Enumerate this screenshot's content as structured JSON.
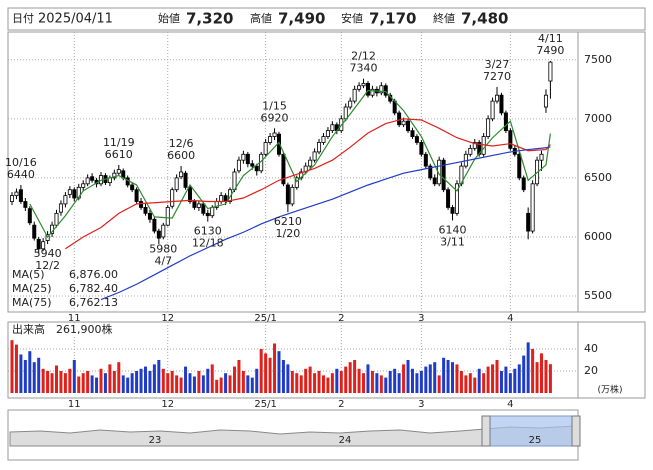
{
  "header": {
    "date_label": "日付",
    "date": "2025/04/11",
    "fields": [
      {
        "label": "始値",
        "value": "7,320",
        "color": "#000000"
      },
      {
        "label": "高値",
        "value": "7,490",
        "color": "#e0201b"
      },
      {
        "label": "安値",
        "value": "7,170",
        "color": "#1a8a1a"
      },
      {
        "label": "終値",
        "value": "7,480",
        "color": "#000000"
      }
    ]
  },
  "chart_data": [
    {
      "type": "candlestick",
      "up_color": "#ffffff",
      "down_color": "#000000",
      "grid": true,
      "ylim": [
        5365,
        7735
      ],
      "yticks": [
        5500,
        6000,
        6500,
        7000,
        7500
      ],
      "xlim": [
        -0.9,
        127.2
      ],
      "xticks": [
        {
          "value": 14,
          "label": "11"
        },
        {
          "value": 35,
          "label": "12"
        },
        {
          "value": 57,
          "label": "25/1"
        },
        {
          "value": 74,
          "label": "2"
        },
        {
          "value": 92,
          "label": "3"
        },
        {
          "value": 112,
          "label": "4"
        }
      ],
      "candles": [
        [
          6300,
          6380,
          6270,
          6350
        ],
        [
          6350,
          6410,
          6320,
          6380
        ],
        [
          6400,
          6440,
          6280,
          6300
        ],
        [
          6300,
          6330,
          6220,
          6250
        ],
        [
          6240,
          6260,
          6100,
          6120
        ],
        [
          6100,
          6130,
          5970,
          5990
        ],
        [
          5980,
          6000,
          5860,
          5900
        ],
        [
          5900,
          5990,
          5880,
          5960
        ],
        [
          5970,
          6050,
          5940,
          6020
        ],
        [
          6030,
          6130,
          6000,
          6100
        ],
        [
          6100,
          6230,
          6080,
          6200
        ],
        [
          6210,
          6310,
          6180,
          6280
        ],
        [
          6280,
          6380,
          6250,
          6350
        ],
        [
          6360,
          6430,
          6330,
          6400
        ],
        [
          6400,
          6420,
          6300,
          6330
        ],
        [
          6330,
          6450,
          6310,
          6420
        ],
        [
          6420,
          6480,
          6390,
          6450
        ],
        [
          6450,
          6530,
          6430,
          6500
        ],
        [
          6510,
          6540,
          6460,
          6480
        ],
        [
          6480,
          6500,
          6420,
          6450
        ],
        [
          6450,
          6550,
          6430,
          6520
        ],
        [
          6520,
          6540,
          6440,
          6460
        ],
        [
          6460,
          6520,
          6430,
          6500
        ],
        [
          6500,
          6570,
          6480,
          6540
        ],
        [
          6540,
          6610,
          6520,
          6570
        ],
        [
          6560,
          6580,
          6480,
          6500
        ],
        [
          6500,
          6520,
          6420,
          6440
        ],
        [
          6440,
          6460,
          6380,
          6400
        ],
        [
          6400,
          6420,
          6280,
          6300
        ],
        [
          6300,
          6330,
          6230,
          6250
        ],
        [
          6250,
          6280,
          6180,
          6200
        ],
        [
          6200,
          6230,
          6120,
          6150
        ],
        [
          6150,
          6170,
          6030,
          6050
        ],
        [
          6050,
          6070,
          5940,
          5990
        ],
        [
          6000,
          6120,
          5980,
          6100
        ],
        [
          6100,
          6270,
          6090,
          6250
        ],
        [
          6260,
          6420,
          6240,
          6400
        ],
        [
          6400,
          6530,
          6380,
          6500
        ],
        [
          6510,
          6600,
          6490,
          6550
        ],
        [
          6540,
          6560,
          6400,
          6420
        ],
        [
          6420,
          6440,
          6280,
          6300
        ],
        [
          6300,
          6320,
          6230,
          6250
        ],
        [
          6250,
          6310,
          6220,
          6280
        ],
        [
          6280,
          6300,
          6180,
          6200
        ],
        [
          6200,
          6230,
          6130,
          6180
        ],
        [
          6180,
          6270,
          6160,
          6250
        ],
        [
          6250,
          6330,
          6230,
          6300
        ],
        [
          6300,
          6380,
          6280,
          6350
        ],
        [
          6350,
          6370,
          6270,
          6300
        ],
        [
          6300,
          6420,
          6280,
          6400
        ],
        [
          6400,
          6580,
          6380,
          6550
        ],
        [
          6560,
          6680,
          6540,
          6650
        ],
        [
          6650,
          6730,
          6620,
          6700
        ],
        [
          6700,
          6720,
          6590,
          6620
        ],
        [
          6620,
          6650,
          6570,
          6600
        ],
        [
          6600,
          6620,
          6520,
          6560
        ],
        [
          6560,
          6720,
          6540,
          6700
        ],
        [
          6700,
          6830,
          6680,
          6800
        ],
        [
          6800,
          6880,
          6780,
          6850
        ],
        [
          6850,
          6920,
          6820,
          6880
        ],
        [
          6870,
          6890,
          6680,
          6700
        ],
        [
          6700,
          6720,
          6430,
          6450
        ],
        [
          6440,
          6460,
          6210,
          6280
        ],
        [
          6280,
          6445,
          6260,
          6420
        ],
        [
          6420,
          6520,
          6400,
          6500
        ],
        [
          6500,
          6580,
          6480,
          6550
        ],
        [
          6550,
          6630,
          6530,
          6600
        ],
        [
          6600,
          6680,
          6580,
          6650
        ],
        [
          6650,
          6750,
          6630,
          6720
        ],
        [
          6720,
          6830,
          6700,
          6800
        ],
        [
          6800,
          6880,
          6780,
          6850
        ],
        [
          6850,
          6930,
          6830,
          6900
        ],
        [
          6900,
          6980,
          6880,
          6950
        ],
        [
          6950,
          6970,
          6870,
          6900
        ],
        [
          6900,
          7030,
          6880,
          7000
        ],
        [
          7000,
          7130,
          6980,
          7100
        ],
        [
          7100,
          7180,
          7080,
          7150
        ],
        [
          7150,
          7280,
          7130,
          7250
        ],
        [
          7250,
          7310,
          7230,
          7280
        ],
        [
          7280,
          7340,
          7260,
          7300
        ],
        [
          7300,
          7320,
          7180,
          7200
        ],
        [
          7200,
          7280,
          7180,
          7250
        ],
        [
          7250,
          7275,
          7190,
          7220
        ],
        [
          7220,
          7310,
          7200,
          7280
        ],
        [
          7280,
          7300,
          7180,
          7200
        ],
        [
          7200,
          7220,
          7130,
          7150
        ],
        [
          7150,
          7170,
          7030,
          7050
        ],
        [
          7050,
          7070,
          6930,
          6950
        ],
        [
          6950,
          7010,
          6930,
          6980
        ],
        [
          6980,
          7000,
          6880,
          6900
        ],
        [
          6900,
          6925,
          6830,
          6850
        ],
        [
          6850,
          6870,
          6780,
          6800
        ],
        [
          6800,
          6820,
          6680,
          6700
        ],
        [
          6700,
          6720,
          6580,
          6600
        ],
        [
          6600,
          6620,
          6480,
          6500
        ],
        [
          6500,
          6530,
          6430,
          6450
        ],
        [
          6450,
          6680,
          6430,
          6650
        ],
        [
          6650,
          6670,
          6380,
          6400
        ],
        [
          6400,
          6420,
          6230,
          6250
        ],
        [
          6250,
          6270,
          6140,
          6200
        ],
        [
          6200,
          6480,
          6180,
          6450
        ],
        [
          6450,
          6630,
          6430,
          6600
        ],
        [
          6600,
          6730,
          6580,
          6700
        ],
        [
          6700,
          6780,
          6680,
          6750
        ],
        [
          6750,
          6830,
          6730,
          6800
        ],
        [
          6800,
          6820,
          6680,
          6700
        ],
        [
          6700,
          6880,
          6680,
          6850
        ],
        [
          6850,
          7030,
          6830,
          7000
        ],
        [
          7000,
          7180,
          6980,
          7150
        ],
        [
          7150,
          7270,
          7130,
          7200
        ],
        [
          7200,
          7220,
          7030,
          7050
        ],
        [
          7050,
          7070,
          6880,
          6900
        ],
        [
          6900,
          6920,
          6730,
          6750
        ],
        [
          6750,
          6770,
          6680,
          6700
        ],
        [
          6700,
          6720,
          6480,
          6500
        ],
        [
          6500,
          6520,
          6380,
          6400
        ],
        [
          6200,
          6250,
          5980,
          6050
        ],
        [
          6050,
          6480,
          6030,
          6450
        ],
        [
          6450,
          6680,
          6430,
          6650
        ],
        [
          6650,
          6730,
          6560,
          6700
        ],
        [
          7100,
          7250,
          7050,
          7200
        ],
        [
          7320,
          7490,
          7170,
          7480
        ]
      ],
      "series": [
        {
          "name": "MA(5)",
          "color": "#2e8b2e",
          "value_label": "6,876.00",
          "x": [
            4,
            8,
            12,
            16,
            20,
            24,
            28,
            32,
            36,
            40,
            44,
            48,
            52,
            56,
            60,
            64,
            68,
            72,
            76,
            80,
            84,
            88,
            92,
            96,
            100,
            104,
            108,
            112,
            116,
            120,
            121
          ],
          "values": [
            6280,
            6000,
            6180,
            6390,
            6480,
            6520,
            6440,
            6170,
            6160,
            6440,
            6240,
            6280,
            6520,
            6640,
            6800,
            6470,
            6610,
            6850,
            7040,
            7240,
            7230,
            7070,
            6850,
            6530,
            6390,
            6660,
            6840,
            6980,
            6480,
            6610,
            6876
          ]
        },
        {
          "name": "MA(25)",
          "color": "#e0201b",
          "value_label": "6,782.40",
          "x": [
            12,
            16,
            20,
            24,
            28,
            32,
            36,
            40,
            44,
            48,
            52,
            56,
            60,
            64,
            68,
            72,
            76,
            80,
            84,
            88,
            92,
            96,
            100,
            104,
            108,
            112,
            116,
            120,
            121
          ],
          "values": [
            5900,
            6000,
            6080,
            6200,
            6280,
            6290,
            6300,
            6310,
            6300,
            6300,
            6330,
            6400,
            6480,
            6530,
            6580,
            6650,
            6760,
            6880,
            6960,
            7000,
            6990,
            6920,
            6840,
            6790,
            6770,
            6790,
            6730,
            6740,
            6782.4
          ]
        },
        {
          "name": "MA(75)",
          "color": "#1f3cc8",
          "value_label": "6,762.13",
          "x": [
            20,
            24,
            28,
            32,
            36,
            40,
            44,
            48,
            52,
            56,
            60,
            64,
            68,
            72,
            76,
            80,
            84,
            88,
            92,
            96,
            100,
            104,
            108,
            112,
            116,
            120,
            121
          ],
          "values": [
            5470,
            5530,
            5600,
            5680,
            5760,
            5840,
            5910,
            5980,
            6040,
            6110,
            6170,
            6220,
            6270,
            6320,
            6380,
            6440,
            6490,
            6540,
            6570,
            6600,
            6630,
            6660,
            6690,
            6720,
            6740,
            6755,
            6762.13
          ]
        }
      ],
      "annotations": [
        {
          "kind": "high",
          "date": "10/16",
          "value": 6440
        },
        {
          "kind": "high",
          "date": "11/19",
          "value": 6610
        },
        {
          "kind": "high",
          "date": "12/6",
          "value": 6600
        },
        {
          "kind": "high",
          "date": "1/15",
          "value": 6920
        },
        {
          "kind": "high",
          "date": "2/12",
          "value": 7340
        },
        {
          "kind": "high",
          "date": "3/27",
          "value": 7270
        },
        {
          "kind": "high",
          "date": "4/11",
          "value": 7490
        },
        {
          "kind": "low",
          "date": "12/2",
          "value": 5940
        },
        {
          "kind": "low",
          "date": "12/18",
          "value": 6130
        },
        {
          "kind": "low",
          "date": "1/20",
          "value": 6210
        },
        {
          "kind": "low",
          "date": "3/11",
          "value": 6140
        },
        {
          "kind": "low",
          "date": "4/7",
          "value": 5980
        }
      ]
    },
    {
      "type": "bar",
      "title": "出来高",
      "latest_label": "261,900株",
      "unit": "(万株)",
      "up_color": "#e0201b",
      "down_color": "#1f3cc8",
      "grid": true,
      "ylim": [
        0,
        64.5
      ],
      "yticks": [
        20,
        40
      ],
      "xlim": [
        -0.9,
        127.2
      ],
      "xticks": [
        {
          "value": 14,
          "label": "11"
        },
        {
          "value": 35,
          "label": "12"
        },
        {
          "value": 57,
          "label": "25/1"
        },
        {
          "value": 74,
          "label": "2"
        },
        {
          "value": 92,
          "label": "3"
        },
        {
          "value": 112,
          "label": "4"
        }
      ],
      "values": [
        48,
        44,
        35,
        30,
        38,
        28,
        32,
        22,
        20,
        18,
        25,
        20,
        18,
        22,
        30,
        15,
        18,
        20,
        16,
        14,
        22,
        18,
        26,
        20,
        28,
        16,
        14,
        18,
        20,
        22,
        24,
        20,
        26,
        30,
        22,
        18,
        20,
        16,
        14,
        24,
        18,
        15,
        20,
        16,
        22,
        26,
        12,
        14,
        18,
        16,
        24,
        30,
        20,
        16,
        14,
        22,
        40,
        36,
        32,
        45,
        38,
        30,
        26,
        20,
        18,
        16,
        22,
        24,
        18,
        20,
        16,
        14,
        18,
        22,
        20,
        24,
        28,
        30,
        22,
        18,
        26,
        20,
        18,
        16,
        14,
        20,
        22,
        18,
        26,
        30,
        22,
        18,
        20,
        24,
        26,
        28,
        16,
        32,
        30,
        28,
        26,
        20,
        16,
        18,
        14,
        22,
        18,
        24,
        26,
        30,
        20,
        24,
        18,
        22,
        26,
        34,
        46,
        40,
        28,
        36,
        30,
        26.19
      ]
    }
  ],
  "navigator": {
    "labels": [
      "23",
      "24",
      "25"
    ]
  }
}
